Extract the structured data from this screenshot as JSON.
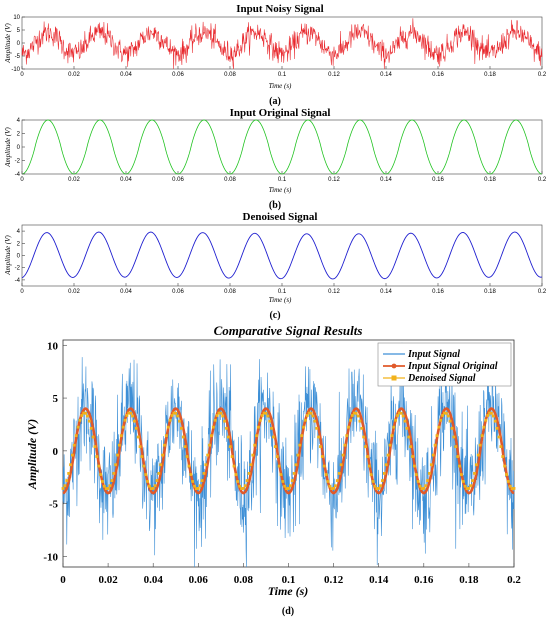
{
  "chart_data": [
    {
      "type": "line",
      "title": "Input Noisy Signal",
      "xlabel": "Time (s)",
      "ylabel": "Amplitude (V)",
      "caption": "(a)",
      "xlim": [
        0,
        0.2
      ],
      "ylim": [
        -10,
        10
      ],
      "xticks": [
        "0",
        "0.02",
        "0.04",
        "0.06",
        "0.08",
        "0.1",
        "0.12",
        "0.14",
        "0.16",
        "0.18",
        "0.2"
      ],
      "yticks": [
        "10",
        "5",
        "0",
        "-5",
        "-10"
      ],
      "series": [
        {
          "color": "#e8262b",
          "description_values": {
            "frequency_hz": 50,
            "amplitude": 4,
            "noise_std": 2.2
          }
        }
      ],
      "grid": false
    },
    {
      "type": "line",
      "title": "Input Original Signal",
      "xlabel": "Time (s)",
      "ylabel": "Amplitude (V)",
      "caption": "(b)",
      "xlim": [
        0,
        0.2
      ],
      "ylim": [
        -4,
        4
      ],
      "xticks": [
        "0",
        "0.02",
        "0.04",
        "0.06",
        "0.08",
        "0.1",
        "0.12",
        "0.14",
        "0.16",
        "0.18",
        "0.2"
      ],
      "yticks": [
        "4",
        "2",
        "0",
        "-2",
        "-4"
      ],
      "series": [
        {
          "color": "#22c322",
          "description_values": {
            "frequency_hz": 50,
            "amplitude": 4
          }
        }
      ],
      "grid": false
    },
    {
      "type": "line",
      "title": "Denoised Signal",
      "xlabel": "Time (s)",
      "ylabel": "Amplitude (V)",
      "caption": "(c)",
      "xlim": [
        0,
        0.2
      ],
      "ylim": [
        -5,
        5
      ],
      "xticks": [
        "0",
        "0.02",
        "0.04",
        "0.06",
        "0.08",
        "0.1",
        "0.12",
        "0.14",
        "0.16",
        "0.18",
        "0.2"
      ],
      "yticks": [
        "4",
        "2",
        "0",
        "-2",
        "-4"
      ],
      "series": [
        {
          "color": "#2020d0",
          "description_values": {
            "frequency_hz": 50,
            "amplitude": 3.8
          }
        }
      ],
      "grid": false
    },
    {
      "type": "line",
      "title": "Comparative Signal Results",
      "xlabel": "Time (s)",
      "ylabel": "Amplitude (V)",
      "caption": "(d)",
      "xlim": [
        0,
        0.2
      ],
      "ylim": [
        -11,
        10.5
      ],
      "xticks": [
        "0",
        "0.02",
        "0.04",
        "0.06",
        "0.08",
        "0.1",
        "0.12",
        "0.14",
        "0.16",
        "0.18",
        "0.2"
      ],
      "yticks": [
        "10",
        "5",
        "0",
        "-5",
        "-10"
      ],
      "legend": "top-right",
      "series": [
        {
          "name": "Input Signal",
          "color": "#3d8fd6"
        },
        {
          "name": "Input Signal Original",
          "color": "#e0592a"
        },
        {
          "name": "Denoised Signal",
          "color": "#f2b21b"
        }
      ],
      "grid": false
    }
  ]
}
